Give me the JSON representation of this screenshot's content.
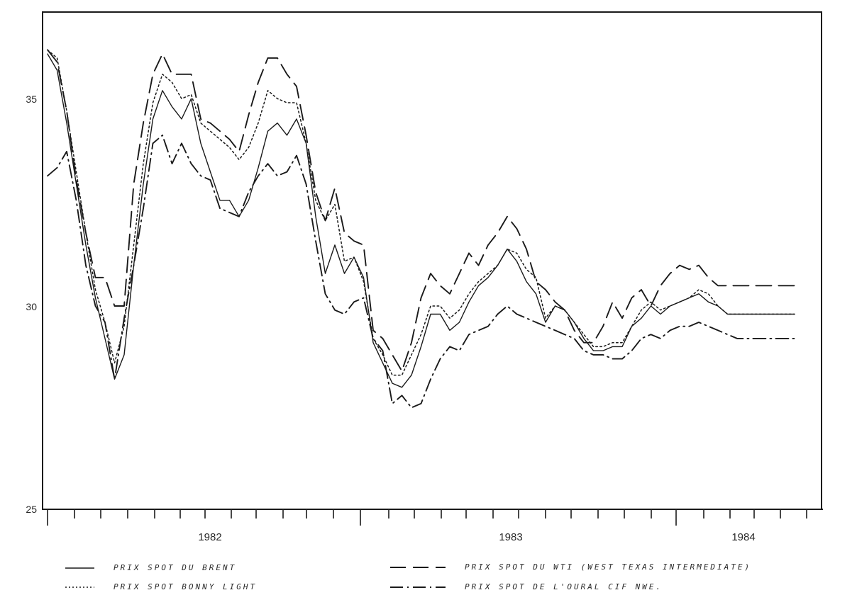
{
  "chart_data": {
    "type": "line",
    "title": "",
    "xlabel": "",
    "ylabel": "",
    "ylim": [
      25,
      37
    ],
    "y_ticks": [
      "25",
      "30",
      "35"
    ],
    "x_period_labels": [
      "1982",
      "1983",
      "1984"
    ],
    "grid": false,
    "legend_placement": "bottom",
    "x_unit": "month index (0 = start of axis, ~Nov 1981)",
    "x": [
      0,
      0.5,
      1,
      1.5,
      2,
      2.5,
      3,
      3.5,
      4,
      4.5,
      5,
      5.5,
      6,
      6.5,
      7,
      7.5,
      8,
      8.5,
      9,
      9.5,
      10,
      10.5,
      11,
      11.5,
      12,
      12.5,
      13,
      13.5,
      14,
      14.5,
      15,
      15.5,
      16,
      16.5,
      17,
      17.5,
      18,
      18.5,
      19,
      19.5,
      20,
      20.5,
      21,
      21.5,
      22,
      22.5,
      23,
      23.5,
      24,
      24.5,
      25,
      25.5,
      26,
      26.5,
      27,
      27.5,
      28,
      28.5,
      29,
      29.5,
      30,
      30.5,
      31,
      31.5,
      32,
      32.5,
      33,
      33.5,
      34,
      34.5,
      35,
      35.5,
      36,
      36.5,
      37,
      37.5,
      38,
      38.5,
      39
    ],
    "series": [
      {
        "name": "PRIX SPOT DU BRENT",
        "style": "solid",
        "width": 1.4,
        "values": [
          36.2,
          35.8,
          34.5,
          33.0,
          31.5,
          30.2,
          29.2,
          28.2,
          28.8,
          31.0,
          33.0,
          34.6,
          35.3,
          34.9,
          34.6,
          35.1,
          34.0,
          33.3,
          32.6,
          32.6,
          32.2,
          32.6,
          33.4,
          34.3,
          34.5,
          34.2,
          34.6,
          34.0,
          32.2,
          30.8,
          31.5,
          30.8,
          31.2,
          30.7,
          29.1,
          28.6,
          28.1,
          28.0,
          28.3,
          29.0,
          29.8,
          29.8,
          29.4,
          29.6,
          30.1,
          30.5,
          30.7,
          31.0,
          31.4,
          31.1,
          30.6,
          30.3,
          29.6,
          30.0,
          29.9,
          29.6,
          29.2,
          28.9,
          28.9,
          29.0,
          29.0,
          29.5,
          29.7,
          30.0,
          29.8,
          30.0,
          30.1,
          30.2,
          30.3,
          30.1,
          30.0,
          29.8,
          29.8,
          29.8,
          29.8,
          29.8,
          29.8,
          29.8,
          29.8
        ]
      },
      {
        "name": "PRIX SPOT BONNY LIGHT",
        "style": "dotted",
        "width": 1.5,
        "values": [
          36.3,
          36.1,
          34.8,
          33.3,
          31.8,
          30.4,
          29.6,
          28.6,
          29.5,
          31.5,
          33.5,
          35.0,
          35.7,
          35.5,
          35.1,
          35.2,
          34.5,
          34.3,
          34.1,
          33.9,
          33.6,
          33.9,
          34.5,
          35.3,
          35.1,
          35.0,
          35.0,
          34.0,
          32.6,
          32.1,
          32.5,
          31.1,
          31.2,
          30.6,
          29.2,
          28.8,
          28.3,
          28.3,
          28.8,
          29.3,
          30.0,
          30.0,
          29.7,
          29.9,
          30.3,
          30.6,
          30.8,
          31.0,
          31.4,
          31.3,
          30.9,
          30.7,
          29.7,
          30.0,
          29.9,
          29.6,
          29.3,
          29.0,
          29.0,
          29.1,
          29.1,
          29.5,
          29.9,
          30.1,
          29.9,
          30.0,
          30.1,
          30.2,
          30.4,
          30.3,
          30.0,
          29.8,
          29.8,
          29.8,
          29.8,
          29.8,
          29.8,
          29.8,
          29.8
        ]
      },
      {
        "name": "PRIX SPOT DU WTI (WEST TEXAS INTERMEDIATE)",
        "style": "dashed",
        "width": 1.9,
        "values": [
          36.3,
          36.0,
          34.8,
          33.1,
          31.8,
          30.7,
          30.7,
          30.0,
          30.0,
          33.0,
          34.5,
          35.7,
          36.2,
          35.7,
          35.7,
          35.7,
          34.6,
          34.5,
          34.3,
          34.1,
          33.8,
          34.7,
          35.5,
          36.1,
          36.1,
          35.7,
          35.4,
          34.2,
          32.8,
          32.1,
          32.9,
          31.8,
          31.6,
          31.5,
          29.4,
          29.2,
          28.8,
          28.4,
          29.1,
          30.2,
          30.8,
          30.5,
          30.3,
          30.8,
          31.3,
          31.0,
          31.5,
          31.8,
          32.2,
          31.9,
          31.4,
          30.6,
          30.4,
          30.1,
          29.9,
          29.4,
          29.1,
          29.1,
          29.5,
          30.1,
          29.7,
          30.2,
          30.4,
          30.0,
          30.5,
          30.8,
          31.0,
          30.9,
          31.0,
          30.7,
          30.5,
          30.5,
          30.5,
          30.5,
          30.5,
          30.5,
          30.5,
          30.5,
          30.5
        ]
      },
      {
        "name": "PRIX SPOT DE L'OURAL CIF NWE.",
        "style": "dash-dot",
        "width": 1.9,
        "values": [
          33.2,
          33.4,
          33.8,
          32.6,
          31.0,
          30.0,
          29.6,
          28.2,
          29.7,
          31.0,
          32.4,
          34.0,
          34.2,
          33.5,
          34.0,
          33.5,
          33.2,
          33.1,
          32.4,
          32.3,
          32.2,
          32.8,
          33.2,
          33.5,
          33.2,
          33.3,
          33.7,
          33.0,
          31.6,
          30.3,
          29.9,
          29.8,
          30.1,
          30.2,
          29.2,
          28.9,
          27.6,
          27.8,
          27.5,
          27.6,
          28.2,
          28.7,
          29.0,
          28.9,
          29.3,
          29.4,
          29.5,
          29.8,
          30.0,
          29.8,
          29.7,
          29.6,
          29.5,
          29.4,
          29.3,
          29.2,
          28.9,
          28.8,
          28.8,
          28.7,
          28.7,
          28.9,
          29.2,
          29.3,
          29.2,
          29.4,
          29.5,
          29.5,
          29.6,
          29.5,
          29.4,
          29.3,
          29.2,
          29.2,
          29.2,
          29.2,
          29.2,
          29.2,
          29.2
        ]
      }
    ]
  },
  "legend": [
    {
      "label": "PRIX SPOT DU BRENT",
      "style": "solid"
    },
    {
      "label": "PRIX SPOT BONNY LIGHT",
      "style": "dotted"
    },
    {
      "label": "PRIX SPOT DU WTI (WEST TEXAS INTERMEDIATE)",
      "style": "dashed"
    },
    {
      "label": "PRIX SPOT DE L'OURAL CIF NWE.",
      "style": "dash-dot"
    }
  ],
  "colors": {
    "ink": "#1a1a1a",
    "background": "#ffffff"
  }
}
